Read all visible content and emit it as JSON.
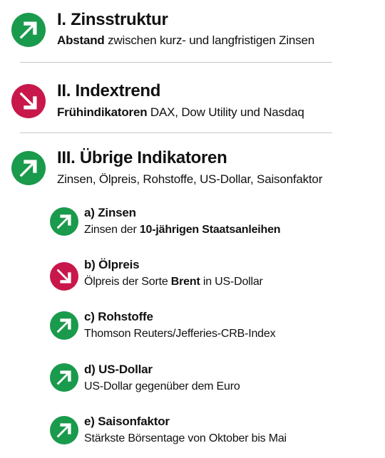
{
  "colors": {
    "up": "#1a9a4c",
    "down": "#c8174a",
    "text": "#111111",
    "divider": "#c8c8c8"
  },
  "main": [
    {
      "direction": "up",
      "icon": "arrow-up-right-icon",
      "title": "I. Zinsstruktur",
      "sub_bold": "Abstand",
      "sub_rest": " zwischen kurz- und langfristigen Zinsen"
    },
    {
      "direction": "down",
      "icon": "arrow-down-right-icon",
      "title": "II. Indextrend",
      "sub_bold": "Frühindikatoren",
      "sub_rest": " DAX, Dow Utility und Nasdaq"
    },
    {
      "direction": "up",
      "icon": "arrow-up-right-icon",
      "title": "III. Übrige Indikatoren",
      "sub_bold": "",
      "sub_rest": "Zinsen, Ölpreis, Rohstoffe, US-Dollar, Saisonfaktor"
    }
  ],
  "sub": [
    {
      "direction": "up",
      "icon": "arrow-up-right-icon",
      "title": "a) Zinsen",
      "sub_pre": "Zinsen der ",
      "sub_bold": "10-jährigen Staatsanleihen",
      "sub_post": ""
    },
    {
      "direction": "down",
      "icon": "arrow-down-right-icon",
      "title": "b) Ölpreis",
      "sub_pre": "Ölpreis der Sorte ",
      "sub_bold": "Brent",
      "sub_post": " in US-Dollar"
    },
    {
      "direction": "up",
      "icon": "arrow-up-right-icon",
      "title": "c) Rohstoffe",
      "sub_pre": "Thomson Reuters/Jefferies-CRB-Index",
      "sub_bold": "",
      "sub_post": ""
    },
    {
      "direction": "up",
      "icon": "arrow-up-right-icon",
      "title": "d) US-Dollar",
      "sub_pre": "US-Dollar gegenüber dem Euro",
      "sub_bold": "",
      "sub_post": ""
    },
    {
      "direction": "up",
      "icon": "arrow-up-right-icon",
      "title": "e) Saisonfaktor",
      "sub_pre": "Stärkste Börsentage von Oktober bis Mai",
      "sub_bold": "",
      "sub_post": ""
    }
  ]
}
